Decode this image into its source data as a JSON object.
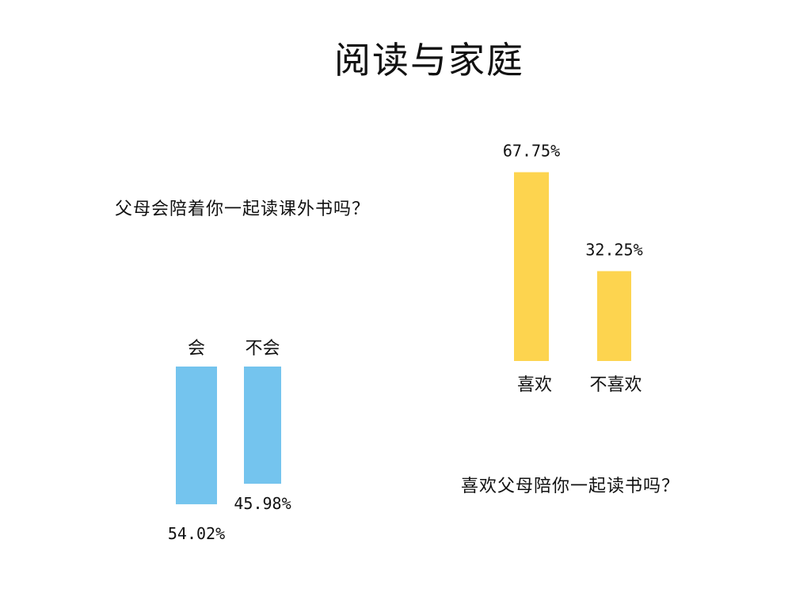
{
  "title": "阅读与家庭",
  "colors": {
    "blue_bar": "#74C4EE",
    "yellow_bar": "#FDD44F",
    "text": "#111111"
  },
  "chart_data": [
    {
      "type": "bar",
      "question": "父母会陪着你一起读课外书吗？",
      "categories": [
        "会",
        "不会"
      ],
      "values": [
        54.02,
        45.98
      ],
      "value_labels": [
        "54.02%",
        "45.98%"
      ],
      "color": "#74C4EE",
      "orientation": "downward"
    },
    {
      "type": "bar",
      "question": "喜欢父母陪你一起读书吗？",
      "categories": [
        "喜欢",
        "不喜欢"
      ],
      "values": [
        67.75,
        32.25
      ],
      "value_labels": [
        "67.75%",
        "32.25%"
      ],
      "color": "#FDD44F",
      "orientation": "upward"
    }
  ]
}
